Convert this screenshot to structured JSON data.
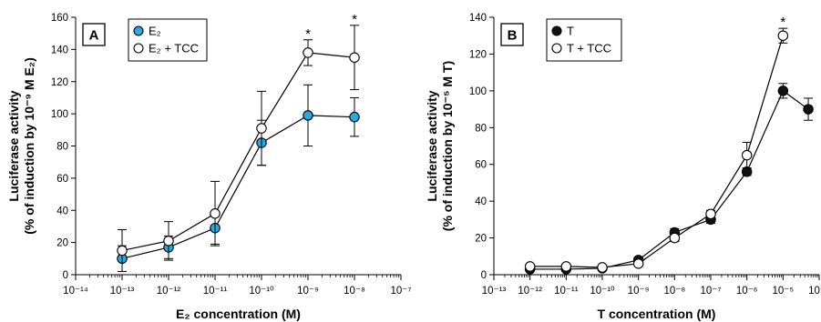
{
  "chart_data": [
    {
      "type": "line",
      "panel_label": "A",
      "xscale": "log",
      "xlabel": "E₂ concentration (M)",
      "ylabel_line1": "Luciferase activity",
      "ylabel_line2": "(% of induction by 10⁻⁹ M E₂)",
      "xlim": [
        "1e-14",
        "1e-7"
      ],
      "ylim": [
        0,
        160
      ],
      "x_ticks": [
        "1e-14",
        "1e-13",
        "1e-12",
        "1e-11",
        "1e-10",
        "1e-9",
        "1e-8",
        "1e-7"
      ],
      "x_tick_labels": [
        "10⁻¹⁴",
        "10⁻¹³",
        "10⁻¹²",
        "10⁻¹¹",
        "10⁻¹⁰",
        "10⁻⁹",
        "10⁻⁸",
        "10⁻⁷"
      ],
      "y_ticks": [
        0,
        20,
        40,
        60,
        80,
        100,
        120,
        140,
        160
      ],
      "legend_position": "top-left",
      "series": [
        {
          "name": "E₂",
          "marker": "filled-circle",
          "color": "#29a9e0",
          "x": [
            "1e-13",
            "1e-12",
            "1e-11",
            "1e-10",
            "1e-9",
            "1e-8"
          ],
          "y": [
            10,
            17,
            29,
            82,
            99,
            98
          ],
          "err": [
            8,
            7,
            10,
            14,
            19,
            12
          ]
        },
        {
          "name": "E₂ + TCC",
          "marker": "open-circle",
          "color": "#ffffff",
          "x": [
            "1e-13",
            "1e-12",
            "1e-11",
            "1e-10",
            "1e-9",
            "1e-8"
          ],
          "y": [
            15,
            21,
            38,
            91,
            138,
            135
          ],
          "err": [
            13,
            12,
            20,
            23,
            8,
            20
          ]
        }
      ],
      "annotations": [
        {
          "text": "*",
          "x": "1e-9"
        },
        {
          "text": "*",
          "x": "1e-8"
        }
      ]
    },
    {
      "type": "line",
      "panel_label": "B",
      "xscale": "log",
      "xlabel": "T concentration (M)",
      "ylabel_line1": "Luciferase activity",
      "ylabel_line2": "(% of induction by 10⁻⁵ M T)",
      "xlim": [
        "1e-13",
        "1e-4"
      ],
      "ylim": [
        0,
        140
      ],
      "x_ticks": [
        "1e-13",
        "1e-12",
        "1e-11",
        "1e-10",
        "1e-9",
        "1e-8",
        "1e-7",
        "1e-6",
        "1e-5",
        "1e-4"
      ],
      "x_tick_labels": [
        "10⁻¹³",
        "10⁻¹²",
        "10⁻¹¹",
        "10⁻¹⁰",
        "10⁻⁹",
        "10⁻⁸",
        "10⁻⁷",
        "10⁻⁶",
        "10⁻⁵",
        "10⁻⁴"
      ],
      "y_ticks": [
        0,
        20,
        40,
        60,
        80,
        100,
        120,
        140
      ],
      "legend_position": "top-left",
      "series": [
        {
          "name": "T",
          "marker": "filled-circle",
          "color": "#111111",
          "x": [
            "1e-12",
            "1e-11",
            "1e-10",
            "1e-9",
            "1e-8",
            "1e-7",
            "1e-6",
            "1e-5",
            "5e-5"
          ],
          "y": [
            3,
            3,
            3.5,
            8,
            23,
            30,
            56,
            100,
            90
          ],
          "err": [
            1,
            1,
            1,
            1.5,
            2,
            2,
            2,
            4,
            6
          ]
        },
        {
          "name": "T + TCC",
          "marker": "open-circle",
          "color": "#ffffff",
          "x": [
            "1e-12",
            "1e-11",
            "1e-10",
            "1e-9",
            "1e-8",
            "1e-7",
            "1e-6",
            "1e-5"
          ],
          "y": [
            4.5,
            4.5,
            4,
            6,
            20,
            33,
            65,
            130
          ],
          "err": [
            1,
            1,
            1,
            1,
            2,
            2,
            7,
            4
          ]
        }
      ],
      "annotations": [
        {
          "text": "*",
          "x": "1e-5"
        }
      ]
    }
  ]
}
